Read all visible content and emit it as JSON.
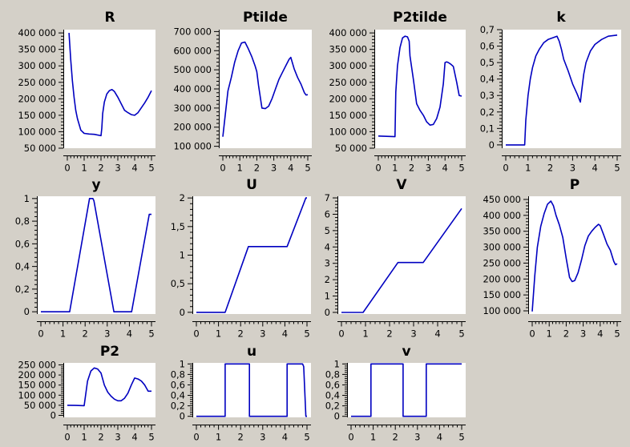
{
  "chart_data": [
    {
      "type": "line",
      "title": "R",
      "ylim": [
        50000,
        410000
      ],
      "xlim": [
        0,
        5
      ],
      "yticks": [
        50000,
        100000,
        150000,
        200000,
        250000,
        300000,
        350000,
        400000
      ],
      "ytick_labels": [
        "50 000",
        "100 000",
        "150 000",
        "200 000",
        "250 000",
        "300 000",
        "350 000",
        "400 000"
      ],
      "xticks": [
        0,
        1,
        2,
        3,
        4,
        5
      ],
      "xtick_labels": [
        "0",
        "1",
        "2",
        "3",
        "4",
        "5"
      ],
      "series": [
        {
          "x": [
            0.1,
            0.2,
            0.3,
            0.4,
            0.5,
            0.6,
            0.8,
            1.0,
            1.3,
            1.6,
            2.0,
            2.05,
            2.1,
            2.2,
            2.35,
            2.5,
            2.65,
            2.8,
            3.0,
            3.2,
            3.4,
            3.6,
            3.8,
            4.0,
            4.2,
            4.4,
            4.6,
            4.8,
            5.0
          ],
          "y": [
            400000,
            320000,
            255000,
            205000,
            165000,
            140000,
            105000,
            95000,
            93000,
            92000,
            88000,
            110000,
            155000,
            190000,
            215000,
            225000,
            228000,
            222000,
            205000,
            185000,
            165000,
            158000,
            152000,
            150000,
            158000,
            173000,
            188000,
            205000,
            225000
          ]
        }
      ]
    },
    {
      "type": "line",
      "title": "Ptilde",
      "ylim": [
        90000,
        710000
      ],
      "xlim": [
        0,
        5
      ],
      "yticks": [
        100000,
        200000,
        300000,
        400000,
        500000,
        600000,
        700000
      ],
      "ytick_labels": [
        "100 000",
        "200 000",
        "300 000",
        "400 000",
        "500 000",
        "600 000",
        "700 000"
      ],
      "xticks": [
        0,
        1,
        2,
        3,
        4,
        5
      ],
      "xtick_labels": [
        "0",
        "1",
        "2",
        "3",
        "4",
        "5"
      ],
      "series": [
        {
          "x": [
            0,
            0.15,
            0.3,
            0.5,
            0.7,
            0.9,
            1.1,
            1.3,
            1.5,
            1.7,
            1.9,
            2.0,
            2.1,
            2.3,
            2.5,
            2.7,
            2.9,
            3.1,
            3.3,
            3.5,
            3.7,
            3.9,
            4.0,
            4.2,
            4.4,
            4.6,
            4.8,
            4.9,
            5.0
          ],
          "y": [
            150000,
            270000,
            390000,
            460000,
            540000,
            600000,
            640000,
            645000,
            610000,
            570000,
            520000,
            490000,
            420000,
            300000,
            297000,
            310000,
            350000,
            400000,
            450000,
            485000,
            520000,
            555000,
            565000,
            505000,
            460000,
            425000,
            380000,
            368000,
            370000
          ]
        }
      ]
    },
    {
      "type": "line",
      "title": "P2tilde",
      "ylim": [
        50000,
        410000
      ],
      "xlim": [
        0,
        5
      ],
      "yticks": [
        50000,
        100000,
        150000,
        200000,
        250000,
        300000,
        350000,
        400000
      ],
      "ytick_labels": [
        "50 000",
        "100 000",
        "150 000",
        "200 000",
        "250 000",
        "300 000",
        "350 000",
        "400 000"
      ],
      "xticks": [
        0,
        1,
        2,
        3,
        4,
        5
      ],
      "xtick_labels": [
        "0",
        "1",
        "2",
        "3",
        "4",
        "5"
      ],
      "series": [
        {
          "x": [
            0,
            0.5,
            1.0,
            1.05,
            1.15,
            1.3,
            1.45,
            1.6,
            1.75,
            1.85,
            1.9,
            2.1,
            2.3,
            2.5,
            2.7,
            2.9,
            3.1,
            3.3,
            3.5,
            3.7,
            3.9,
            4.0,
            4.1,
            4.2,
            4.35,
            4.5,
            4.7,
            4.85,
            5.0
          ],
          "y": [
            87000,
            86000,
            85000,
            220000,
            300000,
            355000,
            385000,
            390000,
            388000,
            375000,
            330000,
            260000,
            185000,
            165000,
            150000,
            130000,
            120000,
            122000,
            140000,
            175000,
            245000,
            310000,
            312000,
            310000,
            305000,
            298000,
            250000,
            210000,
            208000
          ]
        }
      ]
    },
    {
      "type": "line",
      "title": "k",
      "ylim": [
        -0.02,
        0.7
      ],
      "xlim": [
        0,
        5
      ],
      "yticks": [
        0,
        0.1,
        0.2,
        0.3,
        0.4,
        0.5,
        0.6,
        0.7
      ],
      "ytick_labels": [
        "0",
        "0,1",
        "0,2",
        "0,3",
        "0,4",
        "0,5",
        "0,6",
        "0,7"
      ],
      "xticks": [
        0,
        1,
        2,
        3,
        4,
        5
      ],
      "xtick_labels": [
        "0",
        "1",
        "2",
        "3",
        "4",
        "5"
      ],
      "series": [
        {
          "x": [
            0,
            0.4,
            0.85,
            0.9,
            1.0,
            1.1,
            1.2,
            1.35,
            1.5,
            1.7,
            1.9,
            2.1,
            2.3,
            2.4,
            2.5,
            2.6,
            2.8,
            3.0,
            3.2,
            3.35,
            3.4,
            3.5,
            3.6,
            3.8,
            4.0,
            4.3,
            4.6,
            5.0
          ],
          "y": [
            0,
            0,
            0,
            0.15,
            0.3,
            0.4,
            0.47,
            0.54,
            0.58,
            0.62,
            0.64,
            0.65,
            0.66,
            0.63,
            0.58,
            0.52,
            0.45,
            0.37,
            0.31,
            0.26,
            0.32,
            0.43,
            0.5,
            0.57,
            0.61,
            0.64,
            0.66,
            0.667
          ]
        }
      ]
    },
    {
      "type": "line",
      "title": "y",
      "ylim": [
        -0.02,
        1.02
      ],
      "xlim": [
        0,
        5
      ],
      "yticks": [
        0,
        0.2,
        0.4,
        0.6,
        0.8,
        1
      ],
      "ytick_labels": [
        "0",
        "0,2",
        "0,4",
        "0,6",
        "0,8",
        "1"
      ],
      "xticks": [
        0,
        1,
        2,
        3,
        4,
        5
      ],
      "xtick_labels": [
        "0",
        "1",
        "2",
        "3",
        "4",
        "5"
      ],
      "series": [
        {
          "x": [
            0,
            0.6,
            1.2,
            1.3,
            2.2,
            2.35,
            2.4,
            3.3,
            3.4,
            3.6,
            4.0,
            4.1,
            4.9,
            5.0
          ],
          "y": [
            0,
            0,
            0,
            0,
            1,
            1,
            0.98,
            0,
            0,
            0,
            0,
            0,
            0.86,
            0.86
          ]
        }
      ]
    },
    {
      "type": "line",
      "title": "U",
      "ylim": [
        -0.03,
        2.03
      ],
      "xlim": [
        0,
        5
      ],
      "yticks": [
        0,
        0.5,
        1,
        1.5,
        2
      ],
      "ytick_labels": [
        "0",
        "0,5",
        "1",
        "1,5",
        "2"
      ],
      "xticks": [
        0,
        1,
        2,
        3,
        4,
        5
      ],
      "xtick_labels": [
        "0",
        "1",
        "2",
        "3",
        "4",
        "5"
      ],
      "series": [
        {
          "x": [
            0,
            1.3,
            2.35,
            3.0,
            4.1,
            4.95,
            5.0
          ],
          "y": [
            0,
            0,
            1.15,
            1.15,
            1.15,
            2.0,
            2.0
          ]
        }
      ]
    },
    {
      "type": "line",
      "title": "V",
      "ylim": [
        -0.1,
        7.1
      ],
      "xlim": [
        0,
        5
      ],
      "yticks": [
        0,
        1,
        2,
        3,
        4,
        5,
        6,
        7
      ],
      "ytick_labels": [
        "0",
        "1",
        "2",
        "3",
        "4",
        "5",
        "6",
        "7"
      ],
      "xticks": [
        0,
        1,
        2,
        3,
        4,
        5
      ],
      "xtick_labels": [
        "0",
        "1",
        "2",
        "3",
        "4",
        "5"
      ],
      "series": [
        {
          "x": [
            0,
            0.9,
            2.35,
            3.4,
            5.0
          ],
          "y": [
            0,
            0,
            3.05,
            3.05,
            6.35
          ]
        }
      ]
    },
    {
      "type": "line",
      "title": "P",
      "ylim": [
        90000,
        460000
      ],
      "xlim": [
        0,
        5
      ],
      "yticks": [
        100000,
        150000,
        200000,
        250000,
        300000,
        350000,
        400000,
        450000
      ],
      "ytick_labels": [
        "100 000",
        "150 000",
        "200 000",
        "250 000",
        "300 000",
        "350 000",
        "400 000",
        "450 000"
      ],
      "xticks": [
        0,
        1,
        2,
        3,
        4,
        5
      ],
      "xtick_labels": [
        "0",
        "1",
        "2",
        "3",
        "4",
        "5"
      ],
      "series": [
        {
          "x": [
            0,
            0.15,
            0.3,
            0.5,
            0.7,
            0.9,
            1.1,
            1.25,
            1.4,
            1.6,
            1.8,
            2.0,
            2.2,
            2.35,
            2.5,
            2.7,
            2.9,
            3.1,
            3.3,
            3.5,
            3.7,
            3.9,
            4.0,
            4.2,
            4.4,
            4.6,
            4.8,
            4.9,
            5.0
          ],
          "y": [
            98000,
            210000,
            300000,
            365000,
            405000,
            435000,
            445000,
            430000,
            400000,
            370000,
            330000,
            265000,
            205000,
            192000,
            195000,
            220000,
            260000,
            305000,
            335000,
            350000,
            362000,
            372000,
            368000,
            340000,
            310000,
            290000,
            255000,
            245000,
            248000
          ]
        }
      ]
    },
    {
      "type": "line",
      "title": "P2",
      "ylim": [
        -10000,
        260000
      ],
      "xlim": [
        0,
        5
      ],
      "yticks": [
        0,
        50000,
        100000,
        150000,
        200000,
        250000
      ],
      "ytick_labels": [
        "0",
        "50 000",
        "100 000",
        "150 000",
        "200 000",
        "250 000"
      ],
      "xticks": [
        0,
        1,
        2,
        3,
        4,
        5
      ],
      "xtick_labels": [
        "0",
        "1",
        "2",
        "3",
        "4",
        "5"
      ],
      "series": [
        {
          "x": [
            0,
            0.5,
            1.0,
            1.2,
            1.4,
            1.6,
            1.8,
            2.0,
            2.2,
            2.4,
            2.6,
            2.8,
            3.0,
            3.2,
            3.4,
            3.6,
            3.8,
            4.0,
            4.2,
            4.4,
            4.6,
            4.8,
            5.0
          ],
          "y": [
            50000,
            49000,
            48000,
            170000,
            220000,
            235000,
            230000,
            210000,
            150000,
            115000,
            95000,
            80000,
            72000,
            72000,
            85000,
            110000,
            150000,
            185000,
            180000,
            170000,
            150000,
            120000,
            120000
          ]
        }
      ]
    },
    {
      "type": "line",
      "title": "u",
      "ylim": [
        -0.02,
        1.02
      ],
      "xlim": [
        0,
        5
      ],
      "yticks": [
        0,
        0.2,
        0.4,
        0.6,
        0.8,
        1
      ],
      "ytick_labels": [
        "0",
        "0,2",
        "0,4",
        "0,6",
        "0,8",
        "1"
      ],
      "xticks": [
        0,
        1,
        2,
        3,
        4,
        5
      ],
      "xtick_labels": [
        "0",
        "1",
        "2",
        "3",
        "4",
        "5"
      ],
      "series": [
        {
          "x": [
            0,
            1.3,
            1.3,
            2.4,
            2.4,
            4.1,
            4.1,
            4.8,
            4.85,
            4.95,
            5.0
          ],
          "y": [
            0,
            0,
            1,
            1,
            0,
            0,
            1,
            1,
            0.95,
            0,
            0
          ]
        }
      ]
    },
    {
      "type": "line",
      "title": "v",
      "ylim": [
        -0.02,
        1.02
      ],
      "xlim": [
        0,
        5
      ],
      "yticks": [
        0,
        0.2,
        0.4,
        0.6,
        0.8,
        1
      ],
      "ytick_labels": [
        "0",
        "0,2",
        "0,4",
        "0,6",
        "0,8",
        "1"
      ],
      "xticks": [
        0,
        1,
        2,
        3,
        4,
        5
      ],
      "xtick_labels": [
        "0",
        "1",
        "2",
        "3",
        "4",
        "5"
      ],
      "series": [
        {
          "x": [
            0,
            0.9,
            0.9,
            2.35,
            2.35,
            3.4,
            3.4,
            5.0
          ],
          "y": [
            0,
            0,
            1,
            1,
            0,
            0,
            1,
            1
          ]
        }
      ]
    }
  ],
  "colors": {
    "background": "#d4d0c8",
    "plot_area": "#ffffff",
    "line": "#0000c0",
    "axis": "#000000"
  }
}
